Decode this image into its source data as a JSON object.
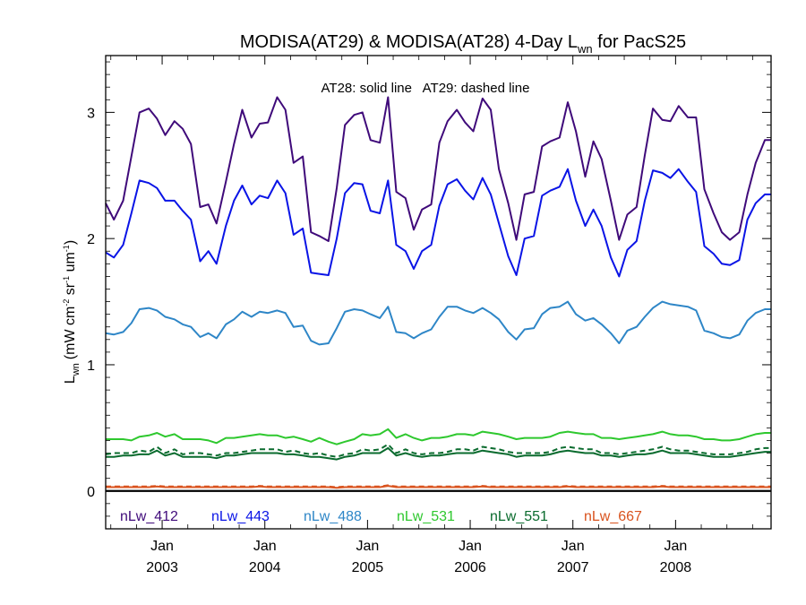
{
  "chart_data": {
    "type": "line",
    "title_main": "MODISA(AT29) & MODISA(AT28) 4-Day L",
    "title_sub": "wn",
    "title_tail": " for PacS25",
    "ylabel_main": "L",
    "ylabel_sub": "wn",
    "ylabel_units": "(mW cm",
    "ylabel_units_parts": [
      "(mW cm",
      "-2",
      " sr",
      "-1",
      " um",
      "-1",
      ")"
    ],
    "annotation": "AT28: solid line   AT29: dashed line",
    "ylim": [
      -0.3,
      3.45
    ],
    "xlim": [
      2002.45,
      2008.93
    ],
    "yticks": [
      0,
      1,
      2,
      3
    ],
    "ytick_labels": [
      "0",
      "1",
      "2",
      "3"
    ],
    "xticks": [
      {
        "x": 2003.0,
        "month": "Jan",
        "year": "2003"
      },
      {
        "x": 2004.0,
        "month": "Jan",
        "year": "2004"
      },
      {
        "x": 2005.0,
        "month": "Jan",
        "year": "2005"
      },
      {
        "x": 2006.0,
        "month": "Jan",
        "year": "2006"
      },
      {
        "x": 2007.0,
        "month": "Jan",
        "year": "2007"
      },
      {
        "x": 2008.0,
        "month": "Jan",
        "year": "2008"
      }
    ],
    "legend": [
      {
        "label": "nLw_412",
        "color": "#3f0a7a"
      },
      {
        "label": "nLw_443",
        "color": "#0a14e6"
      },
      {
        "label": "nLw_488",
        "color": "#2e86c7"
      },
      {
        "label": "nLw_531",
        "color": "#2ec82e"
      },
      {
        "label": "nLw_551",
        "color": "#0a6b2e"
      },
      {
        "label": "nLw_667",
        "color": "#d9531e"
      }
    ],
    "x": [
      2002.45,
      2002.53,
      2002.62,
      2002.7,
      2002.78,
      2002.87,
      2002.95,
      2003.03,
      2003.12,
      2003.2,
      2003.28,
      2003.37,
      2003.45,
      2003.53,
      2003.62,
      2003.7,
      2003.78,
      2003.87,
      2003.95,
      2004.03,
      2004.12,
      2004.2,
      2004.28,
      2004.37,
      2004.45,
      2004.53,
      2004.62,
      2004.7,
      2004.78,
      2004.87,
      2004.95,
      2005.03,
      2005.12,
      2005.2,
      2005.28,
      2005.37,
      2005.45,
      2005.53,
      2005.62,
      2005.7,
      2005.78,
      2005.87,
      2005.95,
      2006.03,
      2006.12,
      2006.2,
      2006.28,
      2006.37,
      2006.45,
      2006.53,
      2006.62,
      2006.7,
      2006.78,
      2006.87,
      2006.95,
      2007.03,
      2007.12,
      2007.2,
      2007.28,
      2007.37,
      2007.45,
      2007.53,
      2007.62,
      2007.7,
      2007.78,
      2007.87,
      2007.95,
      2008.03,
      2008.12,
      2008.2,
      2008.28,
      2008.37,
      2008.45,
      2008.53,
      2008.62,
      2008.7,
      2008.78,
      2008.87,
      2008.93
    ],
    "series": [
      {
        "name": "nLw_412",
        "color": "#3f0a7a",
        "dashed": false,
        "values": [
          2.28,
          2.15,
          2.3,
          2.65,
          3.0,
          3.03,
          2.95,
          2.82,
          2.93,
          2.87,
          2.75,
          2.25,
          2.27,
          2.12,
          2.45,
          2.75,
          3.02,
          2.8,
          2.91,
          2.92,
          3.12,
          3.02,
          2.6,
          2.65,
          2.05,
          2.02,
          1.98,
          2.4,
          2.9,
          2.98,
          3.0,
          2.78,
          2.76,
          3.12,
          2.37,
          2.32,
          2.07,
          2.23,
          2.27,
          2.76,
          2.93,
          3.02,
          2.92,
          2.85,
          3.11,
          3.02,
          2.55,
          2.28,
          1.99,
          2.35,
          2.37,
          2.73,
          2.77,
          2.8,
          3.08,
          2.85,
          2.49,
          2.77,
          2.63,
          2.3,
          1.99,
          2.19,
          2.25,
          2.66,
          3.03,
          2.94,
          2.93,
          3.05,
          2.96,
          2.96,
          2.39,
          2.2,
          2.05,
          1.99,
          2.05,
          2.35,
          2.6,
          2.78,
          2.78
        ]
      },
      {
        "name": "nLw_443",
        "color": "#0a14e6",
        "dashed": false,
        "values": [
          1.89,
          1.85,
          1.95,
          2.2,
          2.46,
          2.44,
          2.4,
          2.3,
          2.3,
          2.22,
          2.15,
          1.82,
          1.9,
          1.8,
          2.1,
          2.3,
          2.42,
          2.27,
          2.34,
          2.32,
          2.46,
          2.36,
          2.03,
          2.08,
          1.73,
          1.72,
          1.71,
          2.0,
          2.36,
          2.44,
          2.43,
          2.22,
          2.2,
          2.46,
          1.95,
          1.9,
          1.76,
          1.9,
          1.95,
          2.26,
          2.43,
          2.47,
          2.38,
          2.31,
          2.48,
          2.35,
          2.12,
          1.86,
          1.71,
          2.0,
          2.02,
          2.34,
          2.38,
          2.41,
          2.55,
          2.3,
          2.1,
          2.23,
          2.1,
          1.85,
          1.7,
          1.91,
          1.98,
          2.3,
          2.54,
          2.52,
          2.48,
          2.55,
          2.45,
          2.37,
          1.94,
          1.88,
          1.8,
          1.79,
          1.83,
          2.15,
          2.28,
          2.35,
          2.35
        ]
      },
      {
        "name": "nLw_488",
        "color": "#2e86c7",
        "dashed": false,
        "values": [
          1.25,
          1.24,
          1.26,
          1.33,
          1.44,
          1.45,
          1.43,
          1.38,
          1.36,
          1.32,
          1.3,
          1.22,
          1.25,
          1.21,
          1.32,
          1.36,
          1.42,
          1.38,
          1.42,
          1.41,
          1.43,
          1.41,
          1.3,
          1.31,
          1.19,
          1.16,
          1.17,
          1.29,
          1.42,
          1.44,
          1.43,
          1.4,
          1.37,
          1.46,
          1.26,
          1.25,
          1.21,
          1.25,
          1.28,
          1.38,
          1.46,
          1.46,
          1.43,
          1.41,
          1.45,
          1.41,
          1.36,
          1.26,
          1.2,
          1.28,
          1.29,
          1.4,
          1.45,
          1.46,
          1.5,
          1.4,
          1.35,
          1.37,
          1.32,
          1.25,
          1.17,
          1.27,
          1.3,
          1.38,
          1.45,
          1.5,
          1.48,
          1.47,
          1.46,
          1.43,
          1.27,
          1.25,
          1.22,
          1.21,
          1.24,
          1.35,
          1.41,
          1.44,
          1.44
        ]
      },
      {
        "name": "nLw_531",
        "color": "#2ec82e",
        "dashed": false,
        "values": [
          0.41,
          0.41,
          0.41,
          0.4,
          0.43,
          0.44,
          0.46,
          0.43,
          0.45,
          0.41,
          0.41,
          0.41,
          0.4,
          0.38,
          0.42,
          0.42,
          0.43,
          0.44,
          0.45,
          0.44,
          0.44,
          0.42,
          0.43,
          0.41,
          0.39,
          0.42,
          0.39,
          0.37,
          0.39,
          0.41,
          0.45,
          0.44,
          0.45,
          0.49,
          0.42,
          0.45,
          0.42,
          0.4,
          0.42,
          0.42,
          0.43,
          0.45,
          0.45,
          0.44,
          0.47,
          0.46,
          0.45,
          0.43,
          0.41,
          0.42,
          0.42,
          0.42,
          0.43,
          0.46,
          0.47,
          0.46,
          0.45,
          0.45,
          0.42,
          0.42,
          0.41,
          0.42,
          0.43,
          0.44,
          0.45,
          0.47,
          0.45,
          0.44,
          0.44,
          0.43,
          0.41,
          0.41,
          0.4,
          0.4,
          0.41,
          0.43,
          0.45,
          0.46,
          0.46
        ]
      },
      {
        "name": "nLw_551",
        "color": "#0a6b2e",
        "dashed": true,
        "values": [
          0.29,
          0.3,
          0.3,
          0.3,
          0.32,
          0.31,
          0.35,
          0.3,
          0.33,
          0.29,
          0.3,
          0.3,
          0.29,
          0.28,
          0.3,
          0.3,
          0.31,
          0.32,
          0.33,
          0.33,
          0.33,
          0.31,
          0.32,
          0.3,
          0.29,
          0.3,
          0.28,
          0.27,
          0.29,
          0.3,
          0.33,
          0.32,
          0.33,
          0.37,
          0.3,
          0.33,
          0.3,
          0.29,
          0.3,
          0.3,
          0.31,
          0.33,
          0.33,
          0.32,
          0.35,
          0.34,
          0.33,
          0.31,
          0.3,
          0.3,
          0.3,
          0.3,
          0.31,
          0.34,
          0.35,
          0.34,
          0.33,
          0.33,
          0.3,
          0.3,
          0.29,
          0.3,
          0.31,
          0.32,
          0.33,
          0.35,
          0.33,
          0.32,
          0.32,
          0.31,
          0.3,
          0.29,
          0.29,
          0.29,
          0.3,
          0.31,
          0.33,
          0.34,
          0.34
        ]
      },
      {
        "name": "nLw_551",
        "color": "#0a6b2e",
        "dashed": false,
        "values": [
          0.27,
          0.27,
          0.28,
          0.28,
          0.29,
          0.29,
          0.32,
          0.28,
          0.3,
          0.27,
          0.27,
          0.27,
          0.27,
          0.26,
          0.28,
          0.28,
          0.29,
          0.3,
          0.3,
          0.3,
          0.3,
          0.29,
          0.29,
          0.28,
          0.27,
          0.27,
          0.26,
          0.25,
          0.27,
          0.28,
          0.3,
          0.3,
          0.3,
          0.34,
          0.28,
          0.3,
          0.28,
          0.27,
          0.28,
          0.28,
          0.29,
          0.3,
          0.3,
          0.3,
          0.32,
          0.31,
          0.3,
          0.29,
          0.27,
          0.28,
          0.28,
          0.28,
          0.29,
          0.31,
          0.32,
          0.31,
          0.3,
          0.3,
          0.28,
          0.28,
          0.27,
          0.28,
          0.29,
          0.29,
          0.3,
          0.32,
          0.3,
          0.3,
          0.3,
          0.29,
          0.28,
          0.27,
          0.27,
          0.27,
          0.28,
          0.29,
          0.3,
          0.31,
          0.31
        ]
      },
      {
        "name": "nLw_667",
        "color": "#d9531e",
        "dashed": false,
        "values": [
          0.03,
          0.03,
          0.03,
          0.03,
          0.03,
          0.03,
          0.035,
          0.03,
          0.03,
          0.03,
          0.03,
          0.03,
          0.03,
          0.03,
          0.03,
          0.03,
          0.03,
          0.03,
          0.035,
          0.03,
          0.03,
          0.03,
          0.03,
          0.03,
          0.03,
          0.03,
          0.03,
          0.025,
          0.03,
          0.03,
          0.03,
          0.03,
          0.03,
          0.04,
          0.03,
          0.03,
          0.03,
          0.03,
          0.03,
          0.03,
          0.03,
          0.03,
          0.03,
          0.03,
          0.035,
          0.03,
          0.03,
          0.03,
          0.03,
          0.03,
          0.03,
          0.03,
          0.03,
          0.03,
          0.035,
          0.03,
          0.03,
          0.03,
          0.03,
          0.03,
          0.03,
          0.03,
          0.03,
          0.03,
          0.03,
          0.035,
          0.03,
          0.03,
          0.03,
          0.03,
          0.03,
          0.03,
          0.03,
          0.03,
          0.03,
          0.03,
          0.03,
          0.03,
          0.03
        ]
      },
      {
        "name": "nLw_667",
        "color": "#d9531e",
        "dashed": true,
        "values": [
          0.035,
          0.035,
          0.035,
          0.035,
          0.035,
          0.035,
          0.04,
          0.035,
          0.035,
          0.035,
          0.035,
          0.035,
          0.035,
          0.035,
          0.035,
          0.035,
          0.035,
          0.035,
          0.04,
          0.035,
          0.035,
          0.035,
          0.035,
          0.035,
          0.035,
          0.035,
          0.035,
          0.03,
          0.035,
          0.035,
          0.035,
          0.035,
          0.035,
          0.045,
          0.035,
          0.035,
          0.035,
          0.035,
          0.035,
          0.035,
          0.035,
          0.035,
          0.035,
          0.035,
          0.04,
          0.035,
          0.035,
          0.035,
          0.035,
          0.035,
          0.035,
          0.035,
          0.035,
          0.035,
          0.04,
          0.035,
          0.035,
          0.035,
          0.035,
          0.035,
          0.035,
          0.035,
          0.035,
          0.035,
          0.035,
          0.04,
          0.035,
          0.035,
          0.035,
          0.035,
          0.035,
          0.035,
          0.035,
          0.035,
          0.035,
          0.035,
          0.035,
          0.035,
          0.035
        ]
      }
    ]
  }
}
